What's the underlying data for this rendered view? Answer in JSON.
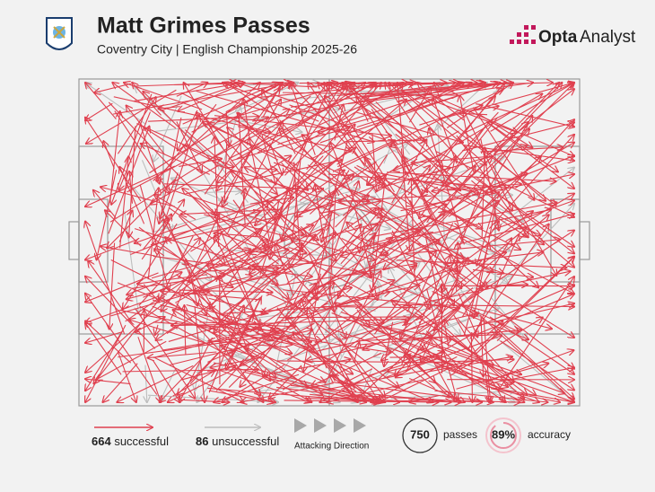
{
  "header": {
    "title": "Matt Grimes Passes",
    "subtitle": "Coventry City | English Championship 2025-26"
  },
  "brand": {
    "prefix": "Opta",
    "name": "Analyst"
  },
  "legend": {
    "successful": {
      "value": 664,
      "label": "successful"
    },
    "unsuccessful": {
      "value": 86,
      "label": "unsuccessful"
    },
    "direction": "Attacking Direction",
    "total": {
      "value": 750,
      "label": "passes"
    },
    "accuracy": {
      "value": 89,
      "value_label": "89%",
      "label": "accuracy"
    }
  },
  "colors": {
    "successful": "#e0404f",
    "unsuccessful": "#bdbdbd"
  }
}
